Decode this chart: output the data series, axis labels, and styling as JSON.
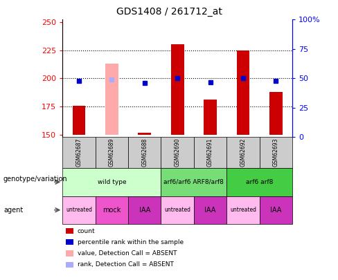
{
  "title": "GDS1408 / 261712_at",
  "samples": [
    "GSM62687",
    "GSM62689",
    "GSM62688",
    "GSM62690",
    "GSM62691",
    "GSM62692",
    "GSM62693"
  ],
  "count_values": [
    176,
    213,
    152,
    230,
    181,
    225,
    188
  ],
  "percentile_values": [
    48,
    49,
    46,
    50,
    47,
    50,
    48
  ],
  "absent_bar": [
    false,
    true,
    false,
    false,
    false,
    false,
    false
  ],
  "absent_rank": [
    false,
    true,
    false,
    false,
    false,
    false,
    false
  ],
  "ylim_left": [
    148,
    252
  ],
  "ylim_right": [
    0,
    100
  ],
  "yticks_left": [
    150,
    175,
    200,
    225,
    250
  ],
  "yticks_right": [
    0,
    25,
    50,
    75,
    100
  ],
  "ytick_labels_right": [
    "0",
    "25",
    "50",
    "75",
    "100%"
  ],
  "bar_color_present": "#cc0000",
  "bar_color_absent": "#ffaaaa",
  "rank_color_present": "#0000cc",
  "rank_color_absent": "#aaaaff",
  "bar_bottom": 150,
  "genotype_groups": [
    {
      "label": "wild type",
      "start": 0,
      "end": 3,
      "color": "#ccffcc"
    },
    {
      "label": "arf6/arf6 ARF8/arf8",
      "start": 3,
      "end": 5,
      "color": "#77dd77"
    },
    {
      "label": "arf6 arf8",
      "start": 5,
      "end": 7,
      "color": "#44cc44"
    }
  ],
  "agent_groups": [
    {
      "label": "untreated",
      "start": 0,
      "end": 1,
      "color": "#ffbbee"
    },
    {
      "label": "mock",
      "start": 1,
      "end": 2,
      "color": "#ee55cc"
    },
    {
      "label": "IAA",
      "start": 2,
      "end": 3,
      "color": "#cc33bb"
    },
    {
      "label": "untreated",
      "start": 3,
      "end": 4,
      "color": "#ffbbee"
    },
    {
      "label": "IAA",
      "start": 4,
      "end": 5,
      "color": "#cc33bb"
    },
    {
      "label": "untreated",
      "start": 5,
      "end": 6,
      "color": "#ffbbee"
    },
    {
      "label": "IAA",
      "start": 6,
      "end": 7,
      "color": "#cc33bb"
    }
  ],
  "legend_labels": [
    "count",
    "percentile rank within the sample",
    "value, Detection Call = ABSENT",
    "rank, Detection Call = ABSENT"
  ],
  "legend_colors": [
    "#cc0000",
    "#0000cc",
    "#ffaaaa",
    "#aaaaff"
  ],
  "gridline_y": [
    175,
    200,
    225
  ],
  "bar_width": 0.4,
  "marker_size": 5
}
